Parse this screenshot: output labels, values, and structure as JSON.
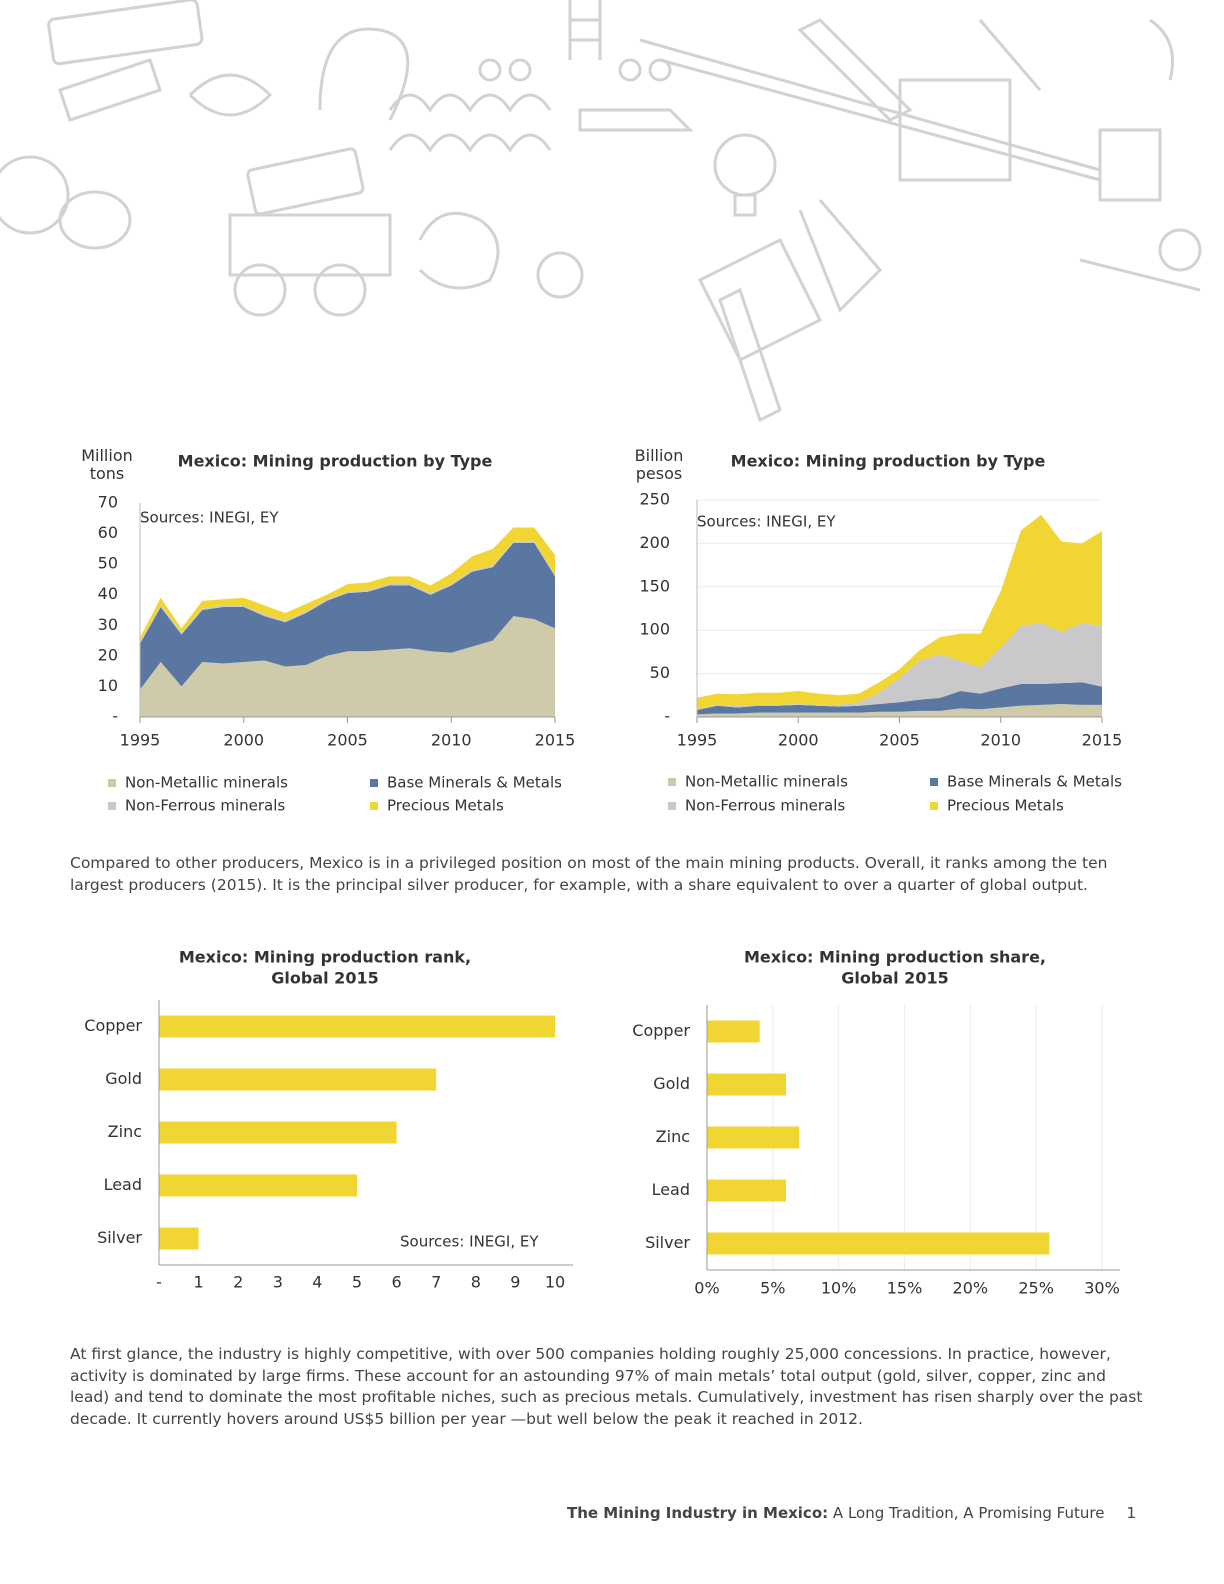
{
  "chart_data": [
    {
      "type": "area",
      "stacked": true,
      "title": "Mexico: Mining production by Type",
      "y_label": "Million tons",
      "annotation": "Sources: INEGI, EY",
      "x": [
        1995,
        1996,
        1997,
        1998,
        1999,
        2000,
        2001,
        2002,
        2003,
        2004,
        2005,
        2006,
        2007,
        2008,
        2009,
        2010,
        2011,
        2012,
        2013,
        2014,
        2015
      ],
      "xlim": [
        1995,
        2015
      ],
      "xticks": [
        1995,
        2000,
        2005,
        2010,
        2015
      ],
      "ylim": [
        0,
        70
      ],
      "yticks": [
        {
          "value": 0,
          "label": "-"
        },
        10,
        20,
        30,
        40,
        50,
        60,
        70
      ],
      "grid": false,
      "series": [
        {
          "name": "Non-Metallic minerals",
          "color": "#cfcaaa",
          "values": [
            9,
            18,
            10,
            18,
            17.5,
            18,
            18.5,
            16.5,
            17,
            20,
            21.5,
            21.5,
            22,
            22.5,
            21.5,
            21,
            23,
            25,
            33,
            32,
            29
          ]
        },
        {
          "name": "Base Minerals & Metals",
          "color": "#5a77a1",
          "values": [
            15,
            18,
            17,
            17,
            18.5,
            18,
            14.5,
            14.5,
            17,
            18,
            19,
            19.5,
            21,
            20.5,
            18.5,
            22,
            24.5,
            24,
            24,
            25,
            17
          ]
        },
        {
          "name": "Non-Ferrous minerals",
          "color": "#c9c9cc",
          "values": [
            0.5,
            0.5,
            0.5,
            0.5,
            0.5,
            0.5,
            0.5,
            0.5,
            0.5,
            0.5,
            0.5,
            0.5,
            0.5,
            0.5,
            0.5,
            0.5,
            0.5,
            0.5,
            0.5,
            0.5,
            0.5
          ]
        },
        {
          "name": "Precious Metals",
          "color": "#f1d532",
          "values": [
            1.5,
            2.5,
            1.5,
            2.5,
            2,
            2.5,
            3,
            2.5,
            2.5,
            1.5,
            2.5,
            2.5,
            2.5,
            2.5,
            2.5,
            3.5,
            4.5,
            5.5,
            4.5,
            4.5,
            6.5
          ]
        }
      ]
    },
    {
      "type": "area",
      "stacked": true,
      "title": "Mexico: Mining production by Type",
      "y_label": "Billion pesos",
      "annotation": "Sources: INEGI, EY",
      "x": [
        1995,
        1996,
        1997,
        1998,
        1999,
        2000,
        2001,
        2002,
        2003,
        2004,
        2005,
        2006,
        2007,
        2008,
        2009,
        2010,
        2011,
        2012,
        2013,
        2014,
        2015
      ],
      "xlim": [
        1995,
        2015
      ],
      "xticks": [
        1995,
        2000,
        2005,
        2010,
        2015
      ],
      "ylim": [
        0,
        250
      ],
      "yticks": [
        {
          "value": 0,
          "label": "-"
        },
        50,
        100,
        150,
        200,
        250
      ],
      "grid": true,
      "series": [
        {
          "name": "Non-Metallic minerals",
          "color": "#cfcaaa",
          "values": [
            3,
            4,
            4,
            5,
            5,
            5,
            5,
            5,
            5,
            6,
            6,
            7,
            7,
            10,
            9,
            11,
            13,
            14,
            15,
            14,
            14
          ]
        },
        {
          "name": "Base Minerals & Metals",
          "color": "#5a77a1",
          "values": [
            5,
            9,
            7,
            8,
            8,
            9,
            8,
            7,
            8,
            9,
            11,
            13,
            15,
            20,
            18,
            22,
            25,
            24,
            24,
            26,
            21
          ]
        },
        {
          "name": "Non-Ferrous minerals",
          "color": "#c9c9cc",
          "values": [
            1,
            1,
            2,
            1,
            1,
            1,
            1,
            2,
            4,
            13,
            28,
            45,
            50,
            35,
            30,
            47,
            67,
            70,
            59,
            68,
            70
          ]
        },
        {
          "name": "Precious Metals",
          "color": "#f1d532",
          "values": [
            13,
            13,
            13,
            14,
            14,
            15,
            13,
            11,
            10,
            12,
            10,
            12,
            20,
            31,
            39,
            65,
            110,
            125,
            104,
            92,
            109
          ]
        }
      ]
    },
    {
      "type": "bar",
      "orientation": "horizontal",
      "title": [
        "Mexico: Mining production rank,",
        "Global 2015"
      ],
      "annotation": "Sources: INEGI, EY",
      "categories": [
        "Copper",
        "Gold",
        "Zinc",
        "Lead",
        "Silver"
      ],
      "values": [
        10,
        7,
        6,
        5,
        1
      ],
      "color": "#f1d532",
      "xlim": [
        0,
        10
      ],
      "xticks": [
        {
          "value": 0,
          "label": "-"
        },
        1,
        2,
        3,
        4,
        5,
        6,
        7,
        8,
        9,
        10
      ],
      "grid": false
    },
    {
      "type": "bar",
      "orientation": "horizontal",
      "title": [
        "Mexico: Mining production share,",
        "Global 2015"
      ],
      "categories": [
        "Copper",
        "Gold",
        "Zinc",
        "Lead",
        "Silver"
      ],
      "values": [
        4,
        6,
        7,
        6,
        26
      ],
      "color": "#f1d532",
      "xlim": [
        0,
        30
      ],
      "xticks": [
        {
          "value": 0,
          "label": "0%"
        },
        {
          "value": 5,
          "label": "5%"
        },
        {
          "value": 10,
          "label": "10%"
        },
        {
          "value": 15,
          "label": "15%"
        },
        {
          "value": 20,
          "label": "20%"
        },
        {
          "value": 25,
          "label": "25%"
        },
        {
          "value": 30,
          "label": "30%"
        }
      ],
      "grid": true
    }
  ],
  "paragraphs": [
    "Compared to other producers, Mexico is in a privileged position on most of the main mining products. Overall, it ranks among the ten largest producers (2015). It is the principal silver producer, for example, with a share equivalent to over a quarter of global output.",
    "At first glance, the industry is highly competitive, with over 500 companies holding roughly 25,000 concessions. In practice, however, activity is dominated by large firms. These account for an astounding 97% of main metals’ total output (gold, silver, copper, zinc and lead) and tend to dominate the most profitable niches, such as precious metals. Cumulatively, investment has risen sharply over the past decade. It currently hovers around US$5 billion per year —but well below the peak it reached in 2012."
  ],
  "footer": {
    "title_bold": "The Mining Industry in Mexico:",
    "title_rest": "A Long Tradition, A Promising Future",
    "page_number": 1
  }
}
